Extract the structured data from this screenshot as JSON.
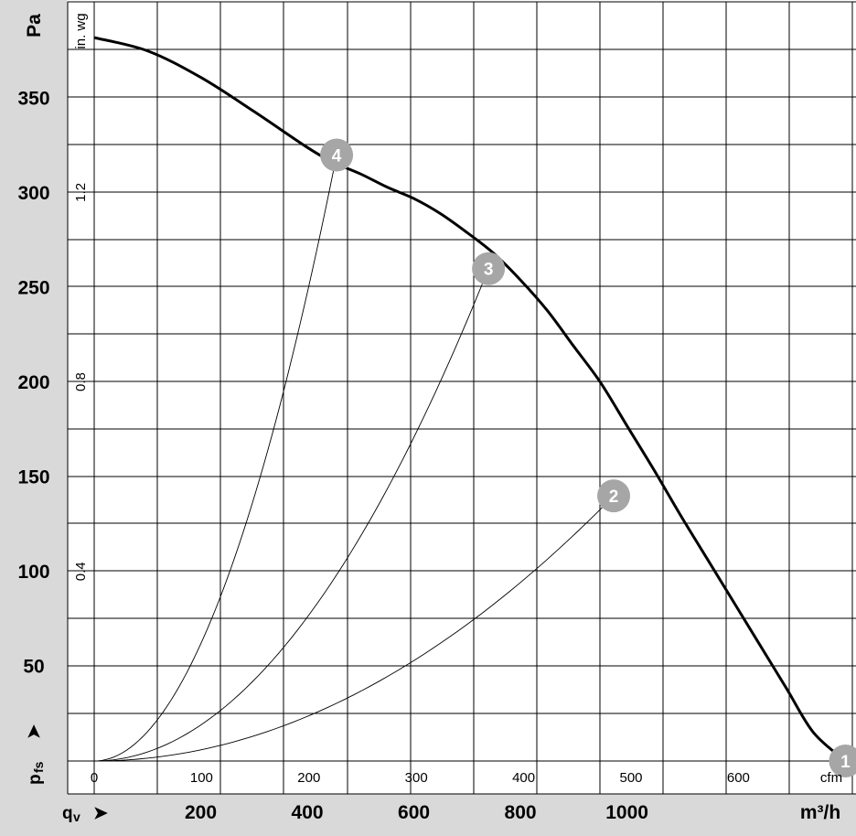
{
  "colors": {
    "band": "#d9d9d9",
    "grid": "#000000",
    "curve": "#000000",
    "marker": "#a6a6a6",
    "marker_text": "#ffffff"
  },
  "chart_data": {
    "type": "line",
    "title": "",
    "units": {
      "pressure_left": "Pa",
      "pressure_inner": "in. wg",
      "flow_top": "cfm",
      "flow_bottom": "m³/h"
    },
    "y_axis_label": {
      "main": "p",
      "sub": "fs",
      "arrow": "➤"
    },
    "x_axis_label": {
      "main": "q",
      "sub": "v",
      "arrow": "➤"
    },
    "ylim_pa": [
      0,
      385
    ],
    "xlim_m3h": [
      0,
      1420
    ],
    "y_ticks_pa": [
      "50",
      "100",
      "150",
      "200",
      "250",
      "300",
      "350"
    ],
    "y_ticks_inwg": [
      {
        "label": "0.4",
        "value": 0.4
      },
      {
        "label": "0.8",
        "value": 0.8
      },
      {
        "label": "1.2",
        "value": 1.2
      }
    ],
    "x_ticks_cfm": [
      {
        "label": "0",
        "value": 0
      },
      {
        "label": "100",
        "value": 100
      },
      {
        "label": "200",
        "value": 200
      },
      {
        "label": "300",
        "value": 300
      },
      {
        "label": "400",
        "value": 400
      },
      {
        "label": "500",
        "value": 500
      },
      {
        "label": "600",
        "value": 600
      }
    ],
    "x_ticks_m3h": [
      "200",
      "400",
      "600",
      "800",
      "1000"
    ],
    "grid": true,
    "fan_curve": {
      "x_m3h": [
        0,
        100,
        200,
        300,
        400,
        450,
        500,
        550,
        600,
        650,
        700,
        750,
        800,
        850,
        900,
        950,
        1000,
        1050,
        1100,
        1150,
        1200,
        1250,
        1300,
        1350,
        1410
      ],
      "y_pa": [
        382,
        375,
        361,
        343,
        324,
        316,
        310,
        303,
        297,
        289,
        279,
        268,
        254,
        238,
        219,
        200,
        177,
        154,
        130,
        107,
        84,
        61,
        38,
        15,
        0
      ]
    },
    "system_curves": [
      {
        "marker": "2",
        "end_m3h": 975,
        "end_pa": 140
      },
      {
        "marker": "3",
        "end_m3h": 740,
        "end_pa": 260
      },
      {
        "marker": "4",
        "end_m3h": 455,
        "end_pa": 320
      }
    ],
    "operating_points": [
      {
        "label": "1",
        "x_m3h": 1410,
        "y_pa": 0
      },
      {
        "label": "2",
        "x_m3h": 975,
        "y_pa": 140
      },
      {
        "label": "3",
        "x_m3h": 740,
        "y_pa": 260
      },
      {
        "label": "4",
        "x_m3h": 455,
        "y_pa": 320
      }
    ]
  }
}
